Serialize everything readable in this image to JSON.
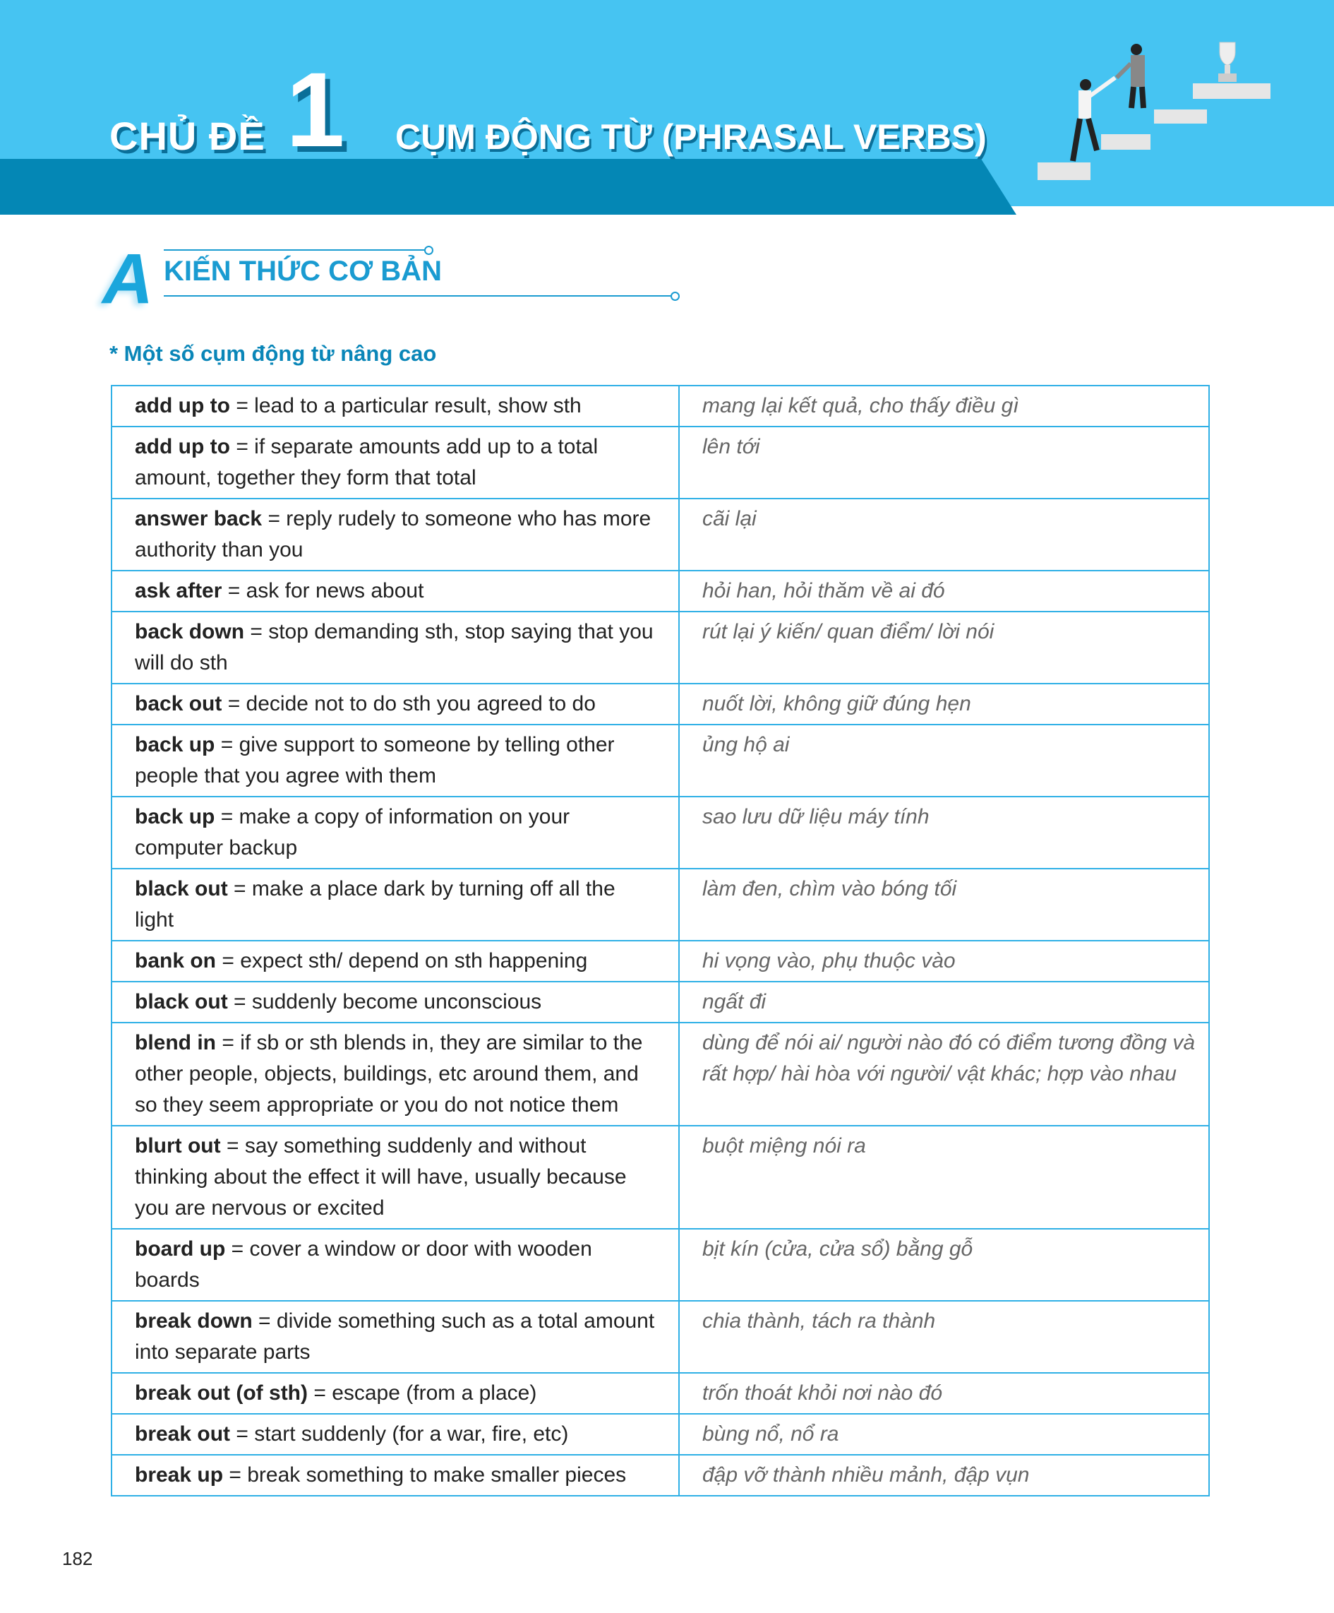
{
  "header": {
    "chapter_label": "CHỦ ĐỀ",
    "chapter_number": "1",
    "title": "CỤM ĐỘNG TỪ (PHRASAL VERBS)"
  },
  "section": {
    "letter": "A",
    "title": "KIẾN THỨC CƠ BẢN"
  },
  "subheading": "* Một số cụm động từ nâng cao",
  "rows": [
    {
      "term": "add up to",
      "def": " = lead to a particular result, show sth",
      "vi": "mang lại kết quả, cho thấy điều gì"
    },
    {
      "term": "add up to",
      "def": " = if separate amounts add up to a total amount, together they form that total",
      "vi": "lên tới"
    },
    {
      "term": "answer back",
      "def": " = reply rudely to someone who has more authority than you",
      "vi": "cãi lại"
    },
    {
      "term": "ask after",
      "def": " = ask for news about",
      "vi": "hỏi han, hỏi thăm về ai đó"
    },
    {
      "term": "back down",
      "def": " = stop demanding sth, stop saying that you will do sth",
      "vi": "rút lại ý kiến/ quan điểm/ lời nói"
    },
    {
      "term": "back out",
      "def": " = decide not to do sth you agreed to do",
      "vi": "nuốt lời, không giữ đúng hẹn"
    },
    {
      "term": "back up",
      "def": " = give support to someone by telling other people that you agree with them",
      "vi": "ủng hộ ai"
    },
    {
      "term": "back up",
      "def": " = make a copy of information on your computer backup",
      "vi": "sao lưu dữ liệu máy tính"
    },
    {
      "term": "black out",
      "def": " = make a place dark by turning off all the light",
      "vi": "làm đen, chìm vào bóng tối"
    },
    {
      "term": "bank on",
      "def": " = expect sth/ depend on sth happening",
      "vi": "hi vọng vào, phụ thuộc vào"
    },
    {
      "term": "black out",
      "def": " = suddenly become unconscious",
      "vi": "ngất đi"
    },
    {
      "term": "blend in",
      "def": " = if sb or sth blends in, they are similar to the other people, objects, buildings, etc around them, and so they seem appropriate or you do not notice them",
      "vi": "dùng để nói ai/ người nào đó có điểm tương đồng và rất hợp/ hài hòa với người/ vật khác; hợp vào nhau"
    },
    {
      "term": "blurt out",
      "def": " = say something suddenly and without thinking about the effect it will have, usually because you are nervous or excited",
      "vi": "buột miệng nói ra"
    },
    {
      "term": "board up",
      "def": " = cover a window or door with wooden boards",
      "vi": "bịt kín (cửa, cửa sổ) bằng gỗ"
    },
    {
      "term": "break down",
      "def": " = divide something such as a total amount into separate parts",
      "vi": "chia thành, tách ra thành"
    },
    {
      "term": "break out (of sth)",
      "def": " = escape (from a place)",
      "vi": "trốn thoát khỏi nơi nào đó"
    },
    {
      "term": "break out",
      "def": " = start suddenly (for a war, fire, etc)",
      "vi": "bùng nổ, nổ ra"
    },
    {
      "term": "break up",
      "def": " = break something to make smaller pieces",
      "vi": "đập vỡ thành nhiều mảnh, đập vụn"
    }
  ],
  "page_number": "182",
  "colors": {
    "header_light": "#46c4f2",
    "header_dark": "#0487b5",
    "accent": "#1a9bd1",
    "table_border": "#2fb0e6"
  }
}
